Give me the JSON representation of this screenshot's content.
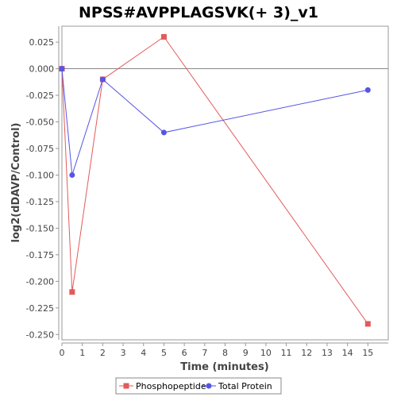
{
  "chart_data": {
    "type": "line",
    "title": "NPSS#AVPPLAGSVK(+ 3)_v1",
    "xlabel": "Time (minutes)",
    "ylabel": "log2(dDAVP/Control)",
    "xlim": [
      0,
      16
    ],
    "ylim": [
      -0.255,
      0.04
    ],
    "x_ticks": [
      "0",
      "1",
      "2",
      "3",
      "4",
      "5",
      "6",
      "7",
      "8",
      "9",
      "10",
      "11",
      "12",
      "13",
      "14",
      "15"
    ],
    "y_ticks": [
      "0.025",
      "0.000",
      "-0.025",
      "-0.050",
      "-0.075",
      "-0.100",
      "-0.125",
      "-0.150",
      "-0.175",
      "-0.200",
      "-0.225",
      "-0.250"
    ],
    "grid": false,
    "zero_line": true,
    "legend_position": "bottom",
    "series": [
      {
        "name": "Phosphopeptide",
        "color": "#e35a5a",
        "marker": "square",
        "x": [
          0,
          0.5,
          2,
          5,
          15
        ],
        "y": [
          0.0,
          -0.21,
          -0.01,
          0.03,
          -0.24
        ]
      },
      {
        "name": "Total Protein",
        "color": "#5555e6",
        "marker": "circle",
        "x": [
          0,
          0.5,
          2,
          5,
          15
        ],
        "y": [
          0.0,
          -0.1,
          -0.01,
          -0.06,
          -0.02
        ]
      }
    ]
  }
}
